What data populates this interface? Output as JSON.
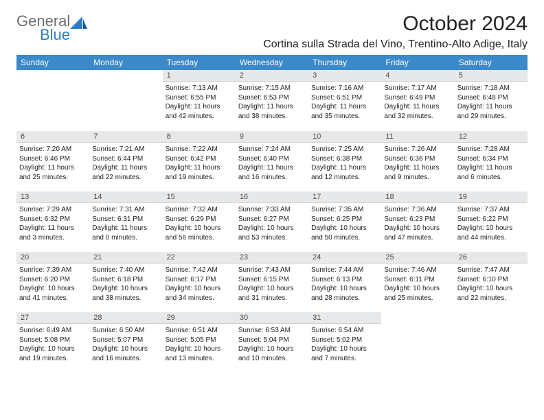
{
  "logo": {
    "general": "General",
    "blue": "Blue"
  },
  "title": "October 2024",
  "location": "Cortina sulla Strada del Vino, Trentino-Alto Adige, Italy",
  "colors": {
    "header_bg": "#3b89c9",
    "header_text": "#ffffff",
    "daynum_bg": "#e7e8e9",
    "logo_general": "#6e6e6e",
    "logo_blue": "#2b7dc4"
  },
  "weekdays": [
    "Sunday",
    "Monday",
    "Tuesday",
    "Wednesday",
    "Thursday",
    "Friday",
    "Saturday"
  ],
  "weeks": [
    [
      null,
      null,
      {
        "n": "1",
        "sunrise": "Sunrise: 7:13 AM",
        "sunset": "Sunset: 6:55 PM",
        "daylight": "Daylight: 11 hours and 42 minutes."
      },
      {
        "n": "2",
        "sunrise": "Sunrise: 7:15 AM",
        "sunset": "Sunset: 6:53 PM",
        "daylight": "Daylight: 11 hours and 38 minutes."
      },
      {
        "n": "3",
        "sunrise": "Sunrise: 7:16 AM",
        "sunset": "Sunset: 6:51 PM",
        "daylight": "Daylight: 11 hours and 35 minutes."
      },
      {
        "n": "4",
        "sunrise": "Sunrise: 7:17 AM",
        "sunset": "Sunset: 6:49 PM",
        "daylight": "Daylight: 11 hours and 32 minutes."
      },
      {
        "n": "5",
        "sunrise": "Sunrise: 7:18 AM",
        "sunset": "Sunset: 6:48 PM",
        "daylight": "Daylight: 11 hours and 29 minutes."
      }
    ],
    [
      {
        "n": "6",
        "sunrise": "Sunrise: 7:20 AM",
        "sunset": "Sunset: 6:46 PM",
        "daylight": "Daylight: 11 hours and 25 minutes."
      },
      {
        "n": "7",
        "sunrise": "Sunrise: 7:21 AM",
        "sunset": "Sunset: 6:44 PM",
        "daylight": "Daylight: 11 hours and 22 minutes."
      },
      {
        "n": "8",
        "sunrise": "Sunrise: 7:22 AM",
        "sunset": "Sunset: 6:42 PM",
        "daylight": "Daylight: 11 hours and 19 minutes."
      },
      {
        "n": "9",
        "sunrise": "Sunrise: 7:24 AM",
        "sunset": "Sunset: 6:40 PM",
        "daylight": "Daylight: 11 hours and 16 minutes."
      },
      {
        "n": "10",
        "sunrise": "Sunrise: 7:25 AM",
        "sunset": "Sunset: 6:38 PM",
        "daylight": "Daylight: 11 hours and 12 minutes."
      },
      {
        "n": "11",
        "sunrise": "Sunrise: 7:26 AM",
        "sunset": "Sunset: 6:36 PM",
        "daylight": "Daylight: 11 hours and 9 minutes."
      },
      {
        "n": "12",
        "sunrise": "Sunrise: 7:28 AM",
        "sunset": "Sunset: 6:34 PM",
        "daylight": "Daylight: 11 hours and 6 minutes."
      }
    ],
    [
      {
        "n": "13",
        "sunrise": "Sunrise: 7:29 AM",
        "sunset": "Sunset: 6:32 PM",
        "daylight": "Daylight: 11 hours and 3 minutes."
      },
      {
        "n": "14",
        "sunrise": "Sunrise: 7:31 AM",
        "sunset": "Sunset: 6:31 PM",
        "daylight": "Daylight: 11 hours and 0 minutes."
      },
      {
        "n": "15",
        "sunrise": "Sunrise: 7:32 AM",
        "sunset": "Sunset: 6:29 PM",
        "daylight": "Daylight: 10 hours and 56 minutes."
      },
      {
        "n": "16",
        "sunrise": "Sunrise: 7:33 AM",
        "sunset": "Sunset: 6:27 PM",
        "daylight": "Daylight: 10 hours and 53 minutes."
      },
      {
        "n": "17",
        "sunrise": "Sunrise: 7:35 AM",
        "sunset": "Sunset: 6:25 PM",
        "daylight": "Daylight: 10 hours and 50 minutes."
      },
      {
        "n": "18",
        "sunrise": "Sunrise: 7:36 AM",
        "sunset": "Sunset: 6:23 PM",
        "daylight": "Daylight: 10 hours and 47 minutes."
      },
      {
        "n": "19",
        "sunrise": "Sunrise: 7:37 AM",
        "sunset": "Sunset: 6:22 PM",
        "daylight": "Daylight: 10 hours and 44 minutes."
      }
    ],
    [
      {
        "n": "20",
        "sunrise": "Sunrise: 7:39 AM",
        "sunset": "Sunset: 6:20 PM",
        "daylight": "Daylight: 10 hours and 41 minutes."
      },
      {
        "n": "21",
        "sunrise": "Sunrise: 7:40 AM",
        "sunset": "Sunset: 6:18 PM",
        "daylight": "Daylight: 10 hours and 38 minutes."
      },
      {
        "n": "22",
        "sunrise": "Sunrise: 7:42 AM",
        "sunset": "Sunset: 6:17 PM",
        "daylight": "Daylight: 10 hours and 34 minutes."
      },
      {
        "n": "23",
        "sunrise": "Sunrise: 7:43 AM",
        "sunset": "Sunset: 6:15 PM",
        "daylight": "Daylight: 10 hours and 31 minutes."
      },
      {
        "n": "24",
        "sunrise": "Sunrise: 7:44 AM",
        "sunset": "Sunset: 6:13 PM",
        "daylight": "Daylight: 10 hours and 28 minutes."
      },
      {
        "n": "25",
        "sunrise": "Sunrise: 7:46 AM",
        "sunset": "Sunset: 6:11 PM",
        "daylight": "Daylight: 10 hours and 25 minutes."
      },
      {
        "n": "26",
        "sunrise": "Sunrise: 7:47 AM",
        "sunset": "Sunset: 6:10 PM",
        "daylight": "Daylight: 10 hours and 22 minutes."
      }
    ],
    [
      {
        "n": "27",
        "sunrise": "Sunrise: 6:49 AM",
        "sunset": "Sunset: 5:08 PM",
        "daylight": "Daylight: 10 hours and 19 minutes."
      },
      {
        "n": "28",
        "sunrise": "Sunrise: 6:50 AM",
        "sunset": "Sunset: 5:07 PM",
        "daylight": "Daylight: 10 hours and 16 minutes."
      },
      {
        "n": "29",
        "sunrise": "Sunrise: 6:51 AM",
        "sunset": "Sunset: 5:05 PM",
        "daylight": "Daylight: 10 hours and 13 minutes."
      },
      {
        "n": "30",
        "sunrise": "Sunrise: 6:53 AM",
        "sunset": "Sunset: 5:04 PM",
        "daylight": "Daylight: 10 hours and 10 minutes."
      },
      {
        "n": "31",
        "sunrise": "Sunrise: 6:54 AM",
        "sunset": "Sunset: 5:02 PM",
        "daylight": "Daylight: 10 hours and 7 minutes."
      },
      null,
      null
    ]
  ]
}
